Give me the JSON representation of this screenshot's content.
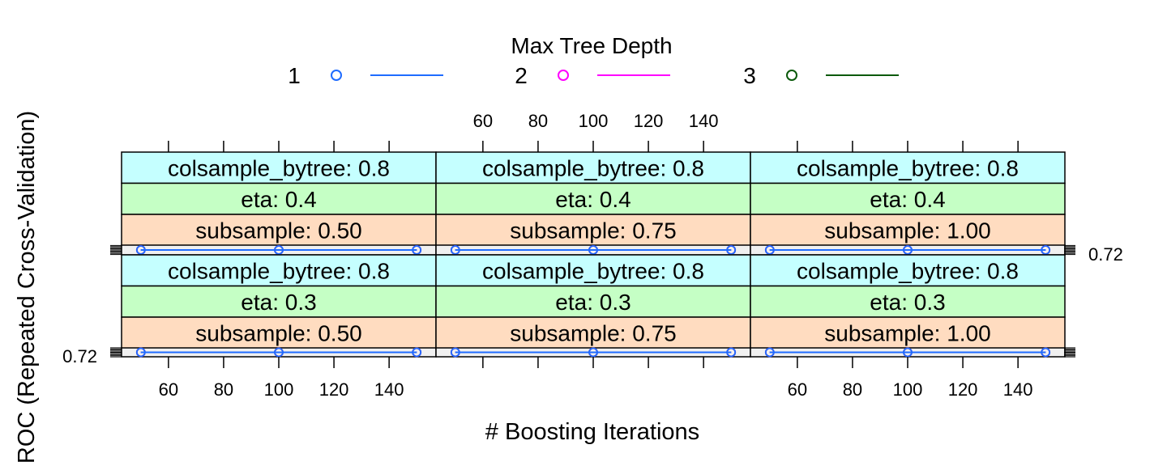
{
  "chart_data": {
    "type": "line",
    "xlabel": "# Boosting Iterations",
    "ylabel": "ROC (Repeated Cross-Validation)",
    "xlim": [
      43,
      157
    ],
    "x_ticks": [
      60,
      80,
      100,
      120,
      140
    ],
    "y_ticks": [
      0.72
    ],
    "legend": {
      "title": "Max Tree Depth",
      "position": "top",
      "entries": [
        {
          "label": "1",
          "color": "#1f6cff"
        },
        {
          "label": "2",
          "color": "#ff00ff"
        },
        {
          "label": "3",
          "color": "#0b5a0b"
        }
      ]
    },
    "strip_colors": {
      "colsample_bytree": "#c5ffff",
      "eta": "#c5ffc5",
      "subsample": "#ffdcc0"
    },
    "panels": [
      {
        "row": "top",
        "colsample_bytree": "colsample_bytree: 0.8",
        "eta": "eta: 0.4",
        "subsample": "subsample: 0.50"
      },
      {
        "row": "top",
        "colsample_bytree": "colsample_bytree: 0.8",
        "eta": "eta: 0.4",
        "subsample": "subsample: 0.75"
      },
      {
        "row": "top",
        "colsample_bytree": "colsample_bytree: 0.8",
        "eta": "eta: 0.4",
        "subsample": "subsample: 1.00"
      },
      {
        "row": "bottom",
        "colsample_bytree": "colsample_bytree: 0.8",
        "eta": "eta: 0.3",
        "subsample": "subsample: 0.50"
      },
      {
        "row": "bottom",
        "colsample_bytree": "colsample_bytree: 0.8",
        "eta": "eta: 0.3",
        "subsample": "subsample: 0.75"
      },
      {
        "row": "bottom",
        "colsample_bytree": "colsample_bytree: 0.8",
        "eta": "eta: 0.3",
        "subsample": "subsample: 1.00"
      }
    ],
    "series": [
      {
        "name": "1",
        "x": [
          50,
          100,
          150
        ],
        "y": [
          0.7205,
          0.7205,
          0.7205
        ]
      },
      {
        "name": "2",
        "x": [
          50,
          100,
          150
        ],
        "y": [
          0.7205,
          0.7205,
          0.7205
        ]
      },
      {
        "name": "3",
        "x": [
          50,
          100,
          150
        ],
        "y": [
          0.7205,
          0.7205,
          0.7205
        ]
      }
    ]
  }
}
